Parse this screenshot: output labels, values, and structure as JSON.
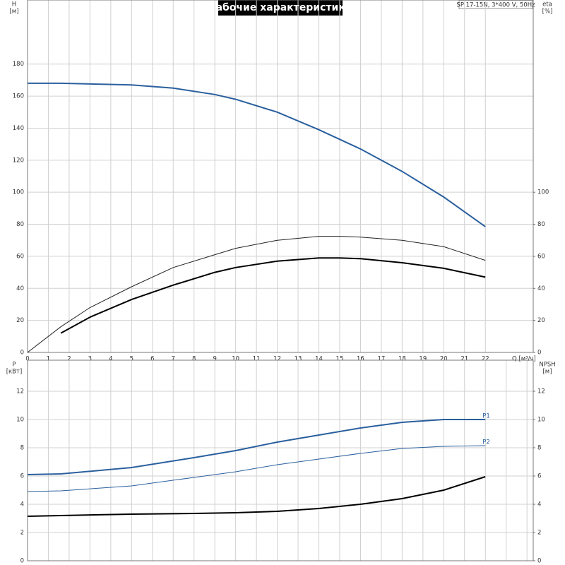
{
  "header": {
    "title": "Рабочие характеристики",
    "model": "SP 17-15N, 3*400 V, 50Hz"
  },
  "chart_data": [
    {
      "type": "line",
      "xlabel": "Q [м³/ч]",
      "ylabel": "H",
      "yunit": "[м]",
      "y2label": "eta",
      "y2unit": "[%]",
      "xlim": [
        0,
        24.3
      ],
      "xticks": [
        0,
        1,
        2,
        3,
        4,
        5,
        6,
        7,
        8,
        9,
        10,
        11,
        12,
        13,
        14,
        15,
        16,
        17,
        18,
        19,
        20,
        21,
        22
      ],
      "show_xtick_labels": true,
      "ylim": [
        0,
        220
      ],
      "yticks": [
        0,
        20,
        40,
        60,
        80,
        100,
        120,
        140,
        160,
        180
      ],
      "y2lim": [
        0,
        220
      ],
      "y2ticks": [
        0,
        20,
        40,
        60,
        80,
        100
      ],
      "grid": true,
      "series": [
        {
          "color": "#2a5f9e",
          "line_width": 2,
          "x": [
            0,
            1.6,
            5,
            7,
            9,
            10,
            12,
            14,
            15,
            16,
            18,
            20,
            22
          ],
          "values": [
            168,
            168,
            167,
            165,
            161,
            158,
            150,
            139,
            133,
            127,
            113,
            97,
            78.5
          ]
        },
        {
          "color": "#222222",
          "line_width": 1,
          "axis": "y2",
          "x": [
            0,
            1.6,
            3,
            5,
            7,
            9,
            10,
            12,
            14,
            15,
            16,
            18,
            20,
            22
          ],
          "values": [
            0,
            16,
            28,
            41,
            53,
            61,
            65,
            70,
            72.5,
            72.5,
            72,
            70,
            66,
            57.5
          ]
        },
        {
          "color": "#000000",
          "line_width": 2,
          "axis": "y2",
          "x": [
            1.6,
            3,
            5,
            7,
            9,
            10,
            12,
            14,
            15,
            16,
            18,
            20,
            22
          ],
          "values": [
            12,
            22,
            33,
            42,
            50,
            53,
            57,
            59,
            59,
            58.5,
            56,
            52.5,
            47
          ]
        }
      ]
    },
    {
      "type": "line",
      "ylabel": "P",
      "yunit": "[кВт]",
      "y2label": "NPSH",
      "y2unit": "[м]",
      "xlim": [
        0,
        24.3
      ],
      "xticks": [
        0,
        1,
        2,
        3,
        4,
        5,
        6,
        7,
        8,
        9,
        10,
        11,
        12,
        13,
        14,
        15,
        16,
        17,
        18,
        19,
        20,
        21,
        22,
        23,
        24
      ],
      "show_xtick_labels": false,
      "ylim": [
        0,
        14.2
      ],
      "yticks": [
        0,
        2,
        4,
        6,
        8,
        10,
        12
      ],
      "y2lim": [
        0,
        14.2
      ],
      "y2ticks": [
        0,
        2,
        4,
        6,
        8,
        10,
        12
      ],
      "grid": true,
      "series": [
        {
          "name": "P1",
          "color": "#2a5f9e",
          "line_width": 2,
          "x": [
            0,
            1.6,
            5,
            8,
            10,
            12,
            14,
            16,
            18,
            20,
            22
          ],
          "values": [
            6.1,
            6.15,
            6.6,
            7.3,
            7.8,
            8.4,
            8.9,
            9.4,
            9.8,
            10,
            10
          ]
        },
        {
          "name": "P2",
          "color": "#2a5f9e",
          "line_width": 1,
          "x": [
            0,
            1.6,
            5,
            8,
            10,
            12,
            14,
            16,
            18,
            20,
            22
          ],
          "values": [
            4.9,
            4.95,
            5.3,
            5.9,
            6.3,
            6.8,
            7.2,
            7.6,
            7.95,
            8.1,
            8.15
          ]
        },
        {
          "color": "#000000",
          "line_width": 2,
          "axis": "y2",
          "x": [
            0,
            1.6,
            5,
            8,
            10,
            12,
            14,
            16,
            18,
            20,
            22
          ],
          "values": [
            3.15,
            3.2,
            3.3,
            3.35,
            3.4,
            3.5,
            3.7,
            4.0,
            4.4,
            5.0,
            5.95
          ]
        }
      ]
    }
  ]
}
